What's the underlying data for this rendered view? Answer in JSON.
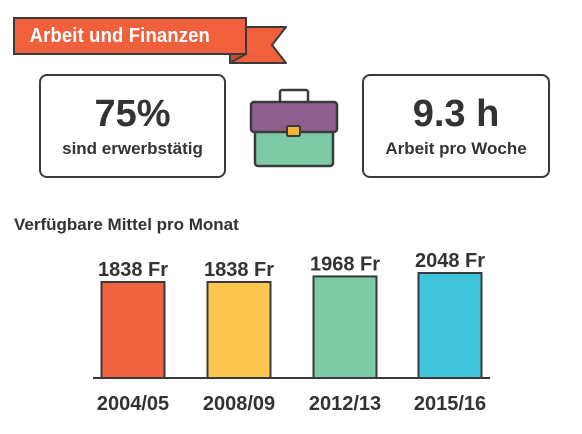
{
  "header": {
    "title": "Arbeit und Finanzen",
    "color": "#f0603d"
  },
  "stats": {
    "employed": {
      "value": "75%",
      "label": "sind erwerbstätig"
    },
    "hours": {
      "value": "9.3 h",
      "label": "Arbeit pro Woche"
    }
  },
  "icon": {
    "name": "briefcase-icon",
    "top_color": "#8e5f8d",
    "bottom_color": "#7ccaa6",
    "clasp_color": "#f4b33a"
  },
  "chart_data": {
    "type": "bar",
    "title": "Verfügbare Mittel pro Monat",
    "categories": [
      "2004/05",
      "2008/09",
      "2012/13",
      "2015/16"
    ],
    "values": [
      1838,
      1838,
      1968,
      2048
    ],
    "value_labels": [
      "1838 Fr",
      "1838 Fr",
      "1968 Fr",
      "2048 Fr"
    ],
    "colors": [
      "#f26342",
      "#fdc64f",
      "#7ccaa6",
      "#40c4dc"
    ],
    "grid": false,
    "legend": "none"
  }
}
